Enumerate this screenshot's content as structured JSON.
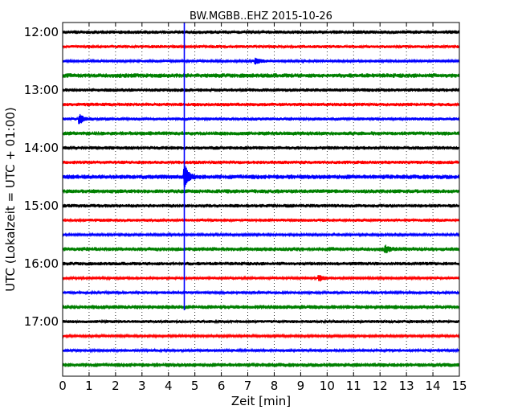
{
  "chart_data": {
    "type": "line",
    "title": "BW.MGBB..EHZ 2015-10-26",
    "xlabel": "Zeit  [min]",
    "ylabel": "UTC (Lokalzeit = UTC + 01:00)",
    "xlim": [
      0,
      15
    ],
    "x_ticks": [
      "0",
      "1",
      "2",
      "3",
      "4",
      "5",
      "6",
      "7",
      "8",
      "9",
      "10",
      "11",
      "12",
      "13",
      "14",
      "15"
    ],
    "y_ticks": [
      "12:00",
      "13:00",
      "14:00",
      "15:00",
      "16:00",
      "17:00"
    ],
    "grid": "vertical dotted",
    "trace_interval_min": 15,
    "colors": [
      "#000000",
      "#ff0000",
      "#0000ff",
      "#008000"
    ],
    "traces": [
      {
        "start": "12:00",
        "amplitude": 0.8,
        "events": []
      },
      {
        "start": "12:15",
        "amplitude": 0.7,
        "events": []
      },
      {
        "start": "12:30",
        "amplitude": 0.6,
        "events": [
          {
            "t": 7.3,
            "amp": 5
          }
        ]
      },
      {
        "start": "12:45",
        "amplitude": 1.0,
        "events": []
      },
      {
        "start": "13:00",
        "amplitude": 0.8,
        "events": []
      },
      {
        "start": "13:15",
        "amplitude": 0.8,
        "events": []
      },
      {
        "start": "13:30",
        "amplitude": 0.7,
        "events": [
          {
            "t": 0.65,
            "amp": 6
          }
        ]
      },
      {
        "start": "13:45",
        "amplitude": 0.9,
        "events": []
      },
      {
        "start": "14:00",
        "amplitude": 0.8,
        "events": []
      },
      {
        "start": "14:15",
        "amplitude": 0.8,
        "events": []
      },
      {
        "start": "14:30",
        "amplitude": 1.0,
        "events": [
          {
            "t": 4.62,
            "amp": 14
          }
        ]
      },
      {
        "start": "14:45",
        "amplitude": 0.9,
        "events": []
      },
      {
        "start": "15:00",
        "amplitude": 0.8,
        "events": []
      },
      {
        "start": "15:15",
        "amplitude": 0.7,
        "events": []
      },
      {
        "start": "15:30",
        "amplitude": 0.5,
        "events": []
      },
      {
        "start": "15:45",
        "amplitude": 0.9,
        "events": [
          {
            "t": 12.2,
            "amp": 4
          }
        ]
      },
      {
        "start": "16:00",
        "amplitude": 0.8,
        "events": []
      },
      {
        "start": "16:15",
        "amplitude": 0.6,
        "events": [
          {
            "t": 9.7,
            "amp": 4
          }
        ]
      },
      {
        "start": "16:30",
        "amplitude": 0.6,
        "events": []
      },
      {
        "start": "16:45",
        "amplitude": 0.9,
        "events": []
      },
      {
        "start": "17:00",
        "amplitude": 0.7,
        "events": []
      },
      {
        "start": "17:15",
        "amplitude": 0.5,
        "events": []
      },
      {
        "start": "17:30",
        "amplitude": 0.6,
        "events": []
      },
      {
        "start": "17:45",
        "amplitude": 0.9,
        "events": []
      }
    ],
    "vertical_spike": {
      "t": 4.6,
      "from": "12:00",
      "to": "16:45",
      "color": "#0000ff"
    }
  }
}
